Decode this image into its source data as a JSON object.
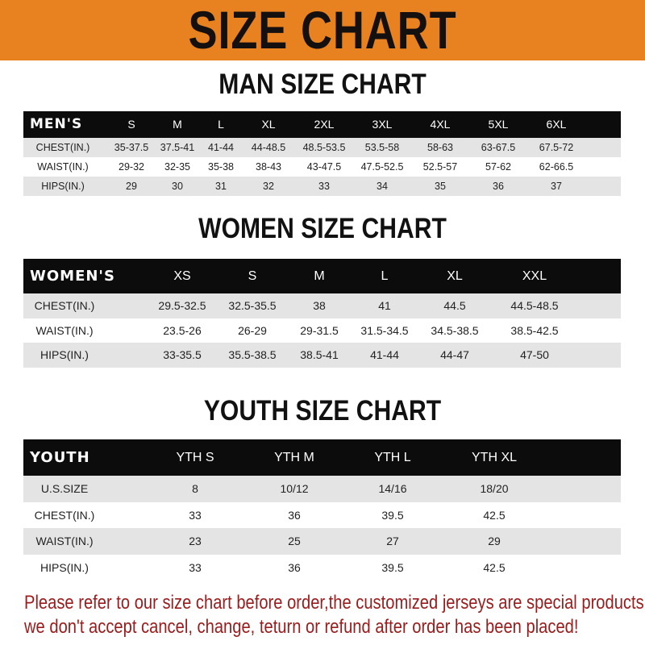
{
  "banner_title": "SIZE CHART",
  "colors": {
    "banner": "#E8811F",
    "header_row": "#0c0c0c",
    "alt_row": "#e4e4e4",
    "notice_text": "#9a1c1c"
  },
  "men": {
    "title": "MAN SIZE CHART",
    "corner": "MEN'S",
    "columns": [
      "S",
      "M",
      "L",
      "XL",
      "2XL",
      "3XL",
      "4XL",
      "5XL",
      "6XL"
    ],
    "rows": [
      {
        "label": "CHEST(IN.)",
        "values": [
          "35-37.5",
          "37.5-41",
          "41-44",
          "44-48.5",
          "48.5-53.5",
          "53.5-58",
          "58-63",
          "63-67.5",
          "67.5-72"
        ]
      },
      {
        "label": "WAIST(IN.)",
        "values": [
          "29-32",
          "32-35",
          "35-38",
          "38-43",
          "43-47.5",
          "47.5-52.5",
          "52.5-57",
          "57-62",
          "62-66.5"
        ]
      },
      {
        "label": "HIPS(IN.)",
        "values": [
          "29",
          "30",
          "31",
          "32",
          "33",
          "34",
          "35",
          "36",
          "37"
        ]
      }
    ]
  },
  "women": {
    "title": "WOMEN SIZE CHART",
    "corner": "WOMEN'S",
    "columns": [
      "XS",
      "S",
      "M",
      "L",
      "XL",
      "XXL"
    ],
    "rows": [
      {
        "label": "CHEST(IN.)",
        "values": [
          "29.5-32.5",
          "32.5-35.5",
          "38",
          "41",
          "44.5",
          "44.5-48.5"
        ]
      },
      {
        "label": "WAIST(IN.)",
        "values": [
          "23.5-26",
          "26-29",
          "29-31.5",
          "31.5-34.5",
          "34.5-38.5",
          "38.5-42.5"
        ]
      },
      {
        "label": "HIPS(IN.)",
        "values": [
          "33-35.5",
          "35.5-38.5",
          "38.5-41",
          "41-44",
          "44-47",
          "47-50"
        ]
      }
    ]
  },
  "youth": {
    "title": "YOUTH SIZE CHART",
    "corner": "YOUTH",
    "columns": [
      "YTH S",
      "YTH M",
      "YTH L",
      "YTH XL"
    ],
    "rows": [
      {
        "label": "U.S.SIZE",
        "values": [
          "8",
          "10/12",
          "14/16",
          "18/20"
        ]
      },
      {
        "label": "CHEST(IN.)",
        "values": [
          "33",
          "36",
          "39.5",
          "42.5"
        ]
      },
      {
        "label": "WAIST(IN.)",
        "values": [
          "23",
          "25",
          "27",
          "29"
        ]
      },
      {
        "label": "HIPS(IN.)",
        "values": [
          "33",
          "36",
          "39.5",
          "42.5"
        ]
      }
    ]
  },
  "notice": {
    "line1": "Please refer to our size chart before order,the customized jerseys are special products,",
    "line2": "we don't accept cancel, change, teturn or refund after order has been placed!"
  }
}
